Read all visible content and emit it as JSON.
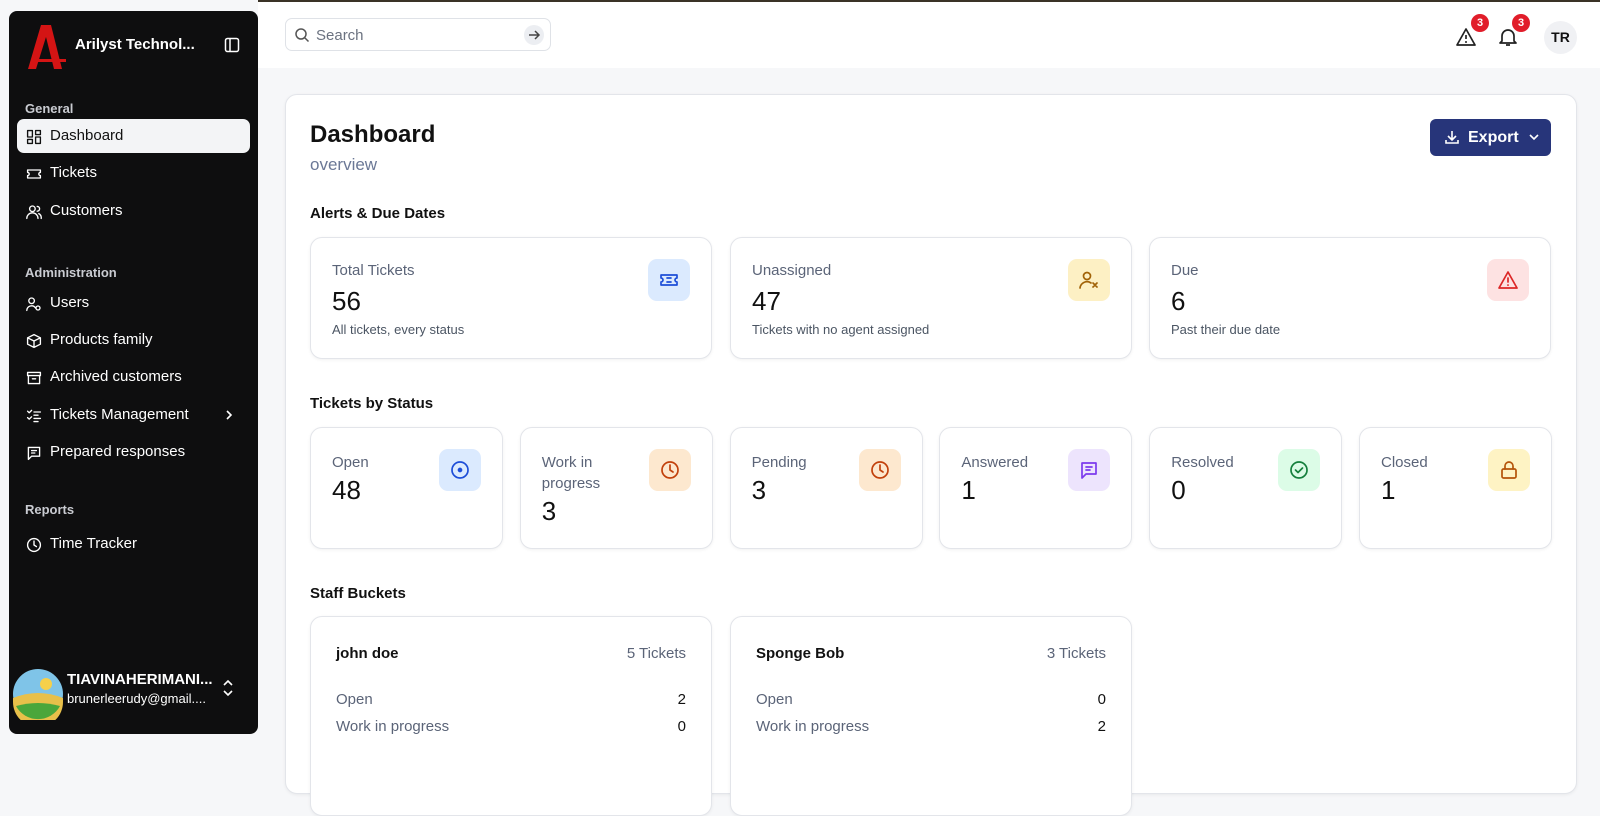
{
  "sidebar": {
    "brand": "Arilyst Technol...",
    "sections": [
      {
        "title": "General",
        "items": [
          "Dashboard",
          "Tickets",
          "Customers"
        ]
      },
      {
        "title": "Administration",
        "items": [
          "Users",
          "Products family",
          "Archived customers",
          "Tickets Management",
          "Prepared responses"
        ]
      },
      {
        "title": "Reports",
        "items": [
          "Time Tracker"
        ]
      }
    ],
    "user": {
      "name": "TIAVINAHERIMANI...",
      "email": "brunerleerudy@gmail...."
    }
  },
  "header": {
    "search_placeholder": "Search",
    "alerts_badge": 3,
    "notifications_badge": 3,
    "avatar": "TR"
  },
  "main": {
    "title": "Dashboard",
    "subtitle": "overview",
    "export_button": "Export",
    "alerts": {
      "title": "Alerts & Due Dates",
      "cards": [
        {
          "label": "Total Tickets",
          "value": 56,
          "description": "All tickets, every status"
        },
        {
          "label": "Unassigned",
          "value": 47,
          "description": "Tickets with no agent assigned"
        },
        {
          "label": "Due",
          "value": 6,
          "description": "Past their due date"
        }
      ]
    },
    "status": {
      "title": "Tickets by Status",
      "cards": [
        {
          "label": "Open",
          "value": 48
        },
        {
          "label": "Work in progress",
          "value": 3
        },
        {
          "label": "Pending",
          "value": 3
        },
        {
          "label": "Answered",
          "value": 1
        },
        {
          "label": "Resolved",
          "value": 0
        },
        {
          "label": "Closed",
          "value": 1
        }
      ]
    },
    "staff": {
      "title": "Staff Buckets",
      "buckets": [
        {
          "name": "john doe",
          "tickets": "5 Tickets",
          "rows": [
            {
              "label": "Open",
              "value": 2
            },
            {
              "label": "Work in progress",
              "value": 0
            }
          ]
        },
        {
          "name": "Sponge Bob",
          "tickets": "3 Tickets",
          "rows": [
            {
              "label": "Open",
              "value": 0
            },
            {
              "label": "Work in progress",
              "value": 2
            }
          ]
        }
      ]
    }
  }
}
